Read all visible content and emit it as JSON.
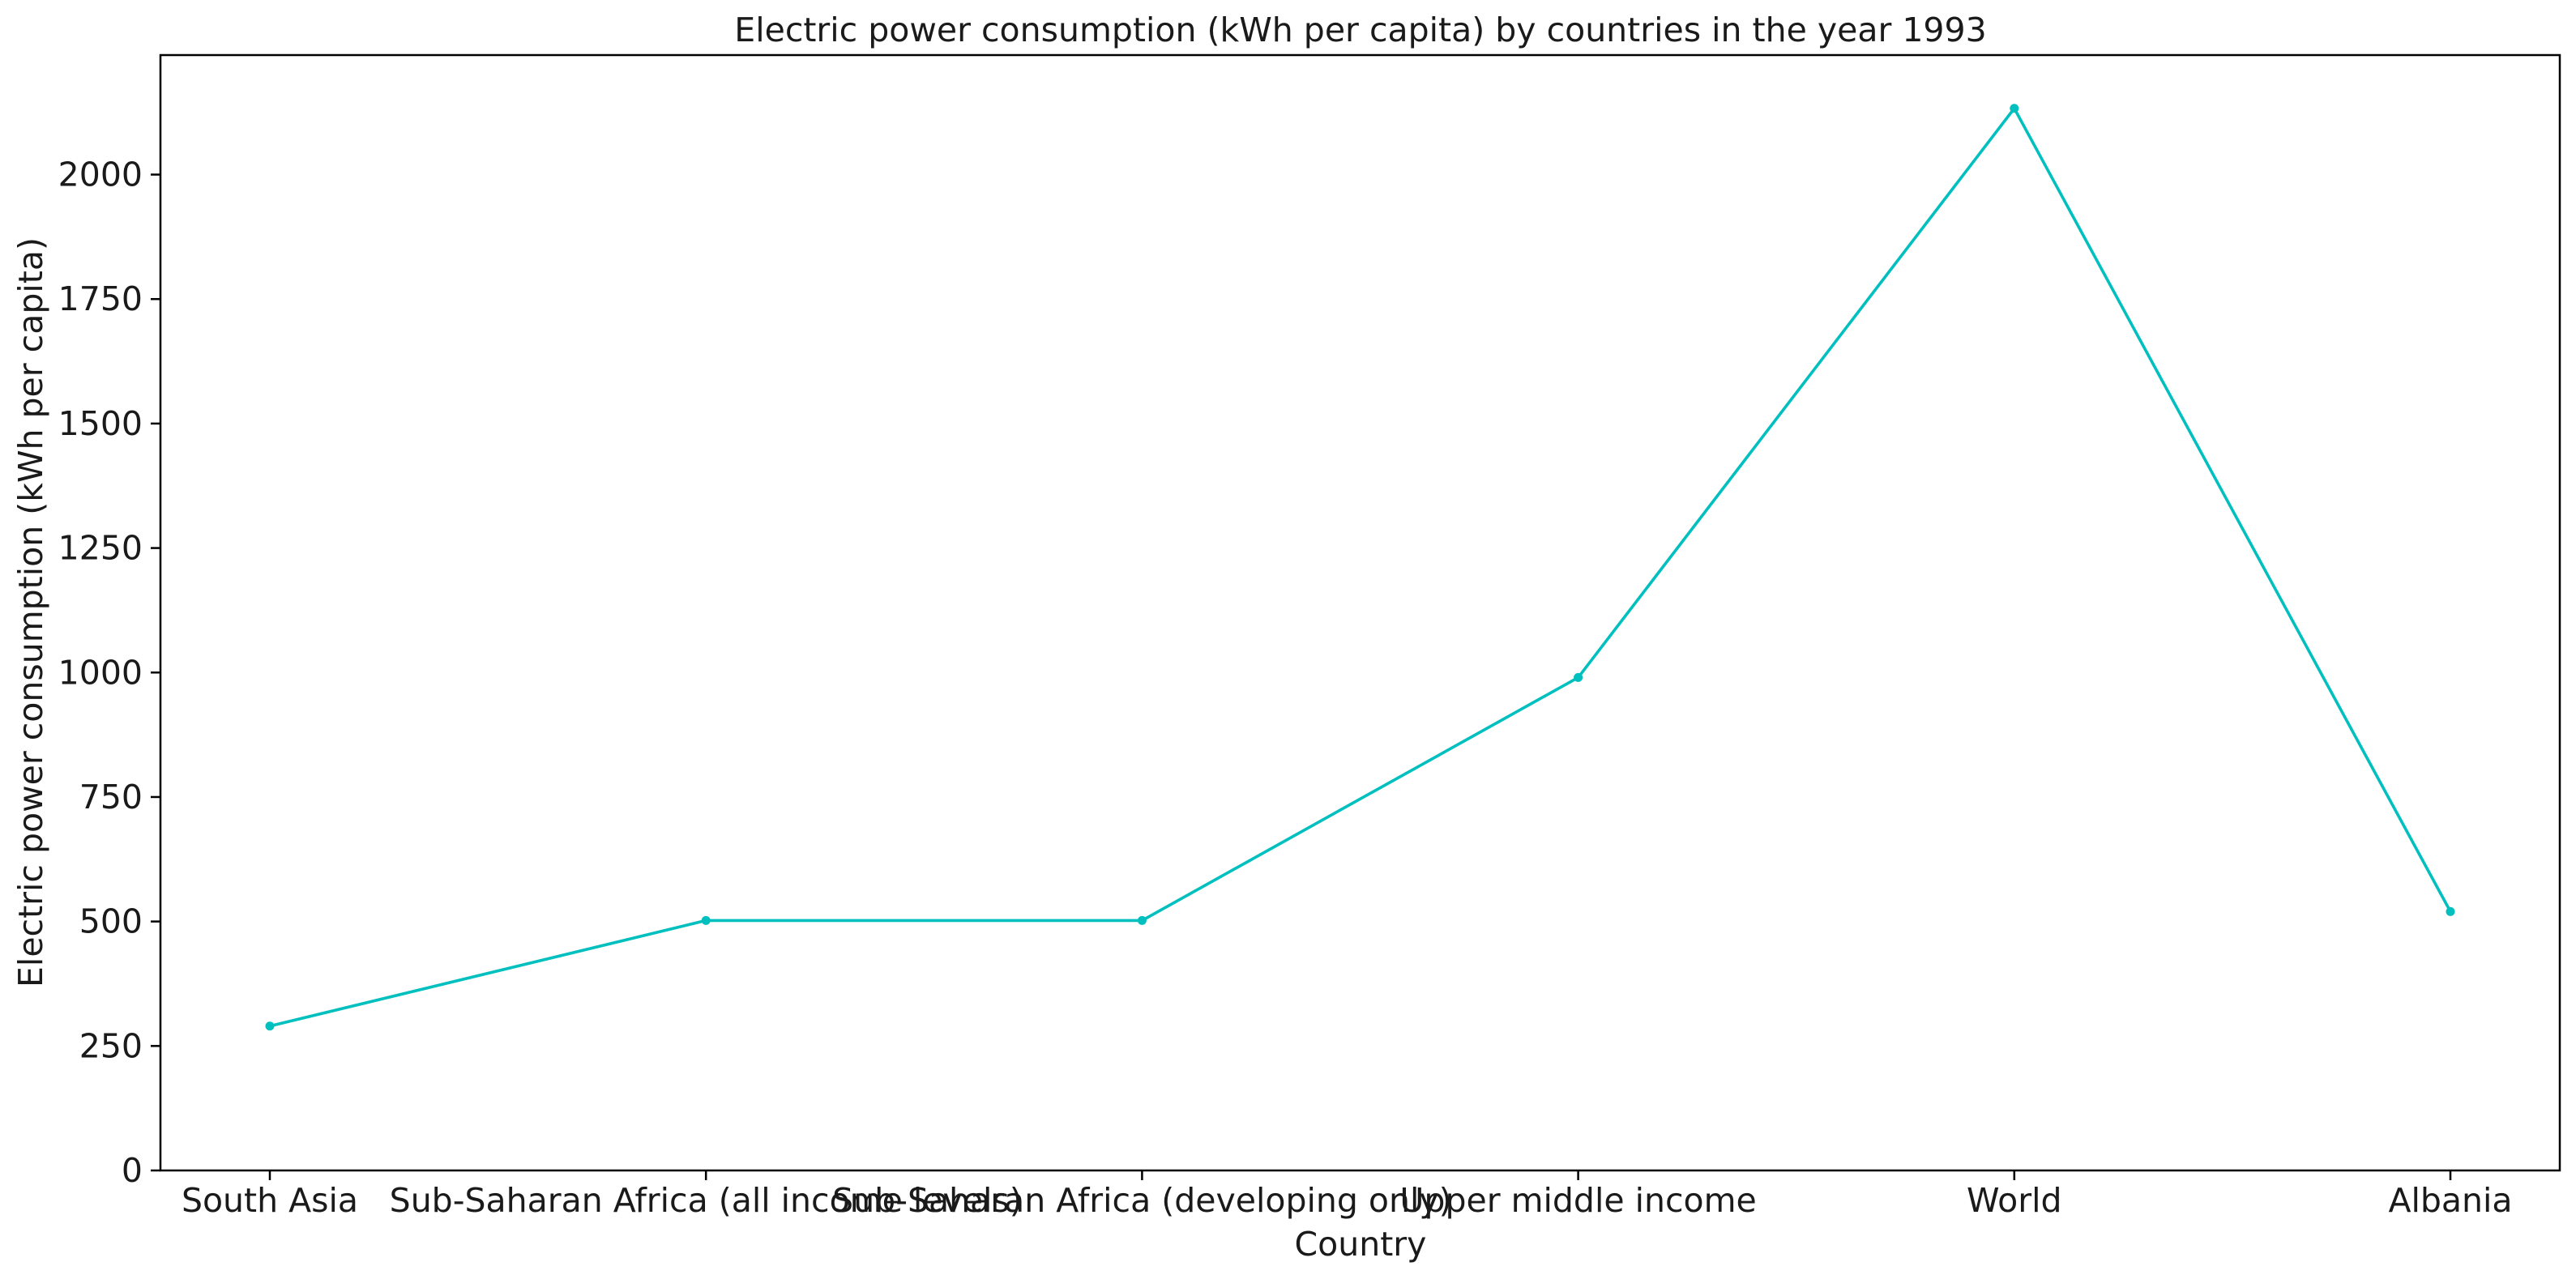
{
  "chart_data": {
    "type": "line",
    "title": "Electric power consumption (kWh per capita) by countries in the year 1993",
    "xlabel": "Country",
    "ylabel": "Electric power consumption (kWh per capita)",
    "categories": [
      "South Asia",
      "Sub-Saharan Africa (all income levels)",
      "Sub-Saharan Africa (developing only)",
      "Upper middle income",
      "World",
      "Albania"
    ],
    "series": [
      {
        "values": [
          290,
          502,
          502,
          990,
          2133,
          520
        ],
        "color": "#00bfbf"
      }
    ],
    "yticks": [
      0,
      250,
      500,
      750,
      1000,
      1250,
      1500,
      1750,
      2000
    ],
    "ylim": [
      0,
      2240
    ],
    "grid": false,
    "legend": "none"
  }
}
